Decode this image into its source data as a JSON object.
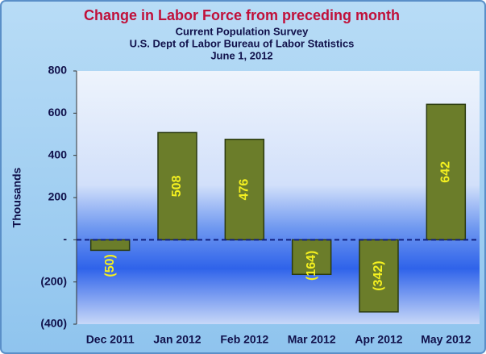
{
  "chart_data": {
    "type": "bar",
    "title": "Change in Labor Force from preceding month",
    "subtitle": [
      "Current Population Survey",
      "U.S. Dept of Labor Bureau of Labor Statistics",
      "June 1, 2012"
    ],
    "y_label": "Thousands",
    "categories": [
      "Dec 2011",
      "Jan 2012",
      "Feb 2012",
      "Mar 2012",
      "Apr 2012",
      "May 2012"
    ],
    "values": [
      -50,
      508,
      476,
      -164,
      -342,
      642
    ],
    "value_labels": [
      "(50)",
      "508",
      "476",
      "(164)",
      "(342)",
      "642"
    ],
    "color": "#6b7d2a",
    "ylim": [
      -400,
      800
    ],
    "yticks": [
      {
        "value": -400,
        "label": "(400)"
      },
      {
        "value": -200,
        "label": "(200)"
      },
      {
        "value": 0,
        "label": "-"
      },
      200,
      400,
      600,
      800
    ],
    "grid": false
  }
}
